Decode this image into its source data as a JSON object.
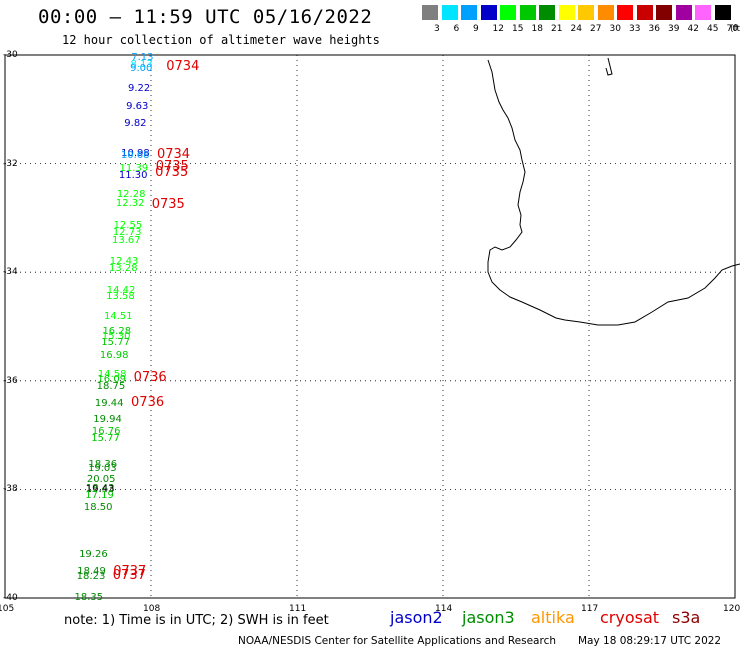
{
  "header": {
    "title": "00:00 – 11:59 UTC 05/16/2022",
    "subtitle": "12 hour collection of altimeter wave heights"
  },
  "legend": {
    "unit": "(ft)",
    "items": [
      {
        "label": "3",
        "color": "#7f7f7f"
      },
      {
        "label": "6",
        "color": "#00e5ff"
      },
      {
        "label": "9",
        "color": "#00a0ff"
      },
      {
        "label": "12",
        "color": "#0000c8"
      },
      {
        "label": "15",
        "color": "#00ff00"
      },
      {
        "label": "18",
        "color": "#00c800"
      },
      {
        "label": "21",
        "color": "#008c00"
      },
      {
        "label": "24",
        "color": "#ffff00"
      },
      {
        "label": "27",
        "color": "#ffc800"
      },
      {
        "label": "30",
        "color": "#ff8c00"
      },
      {
        "label": "33",
        "color": "#ff0000"
      },
      {
        "label": "36",
        "color": "#c80000"
      },
      {
        "label": "39",
        "color": "#820000"
      },
      {
        "label": "42",
        "color": "#a000a0"
      },
      {
        "label": "45",
        "color": "#ff64ff"
      },
      {
        "label": "70",
        "color": "#000000"
      }
    ]
  },
  "map": {
    "lat_labels": [
      "-30",
      "-32",
      "-34",
      "-36",
      "-38",
      "-40"
    ],
    "lon_labels": [
      "105",
      "108",
      "111",
      "114",
      "117",
      "120"
    ],
    "heights": [
      {
        "v": "7.13",
        "c": "#00a0ff",
        "lat": -30.05
      },
      {
        "v": "8.13",
        "c": "#00e5ff",
        "lat": -30.18
      },
      {
        "v": "9.00",
        "c": "#00a0ff",
        "lat": -30.25
      },
      {
        "v": "9.22",
        "c": "#0000c8",
        "lat": -30.62
      },
      {
        "v": "9.63",
        "c": "#0000c8",
        "lat": -30.95
      },
      {
        "v": "9.82",
        "c": "#0000c8",
        "lat": -31.27
      },
      {
        "v": "10.98",
        "c": "#0000c8",
        "lat": -31.82
      },
      {
        "v": "10.68",
        "c": "#00a0ff",
        "lat": -31.86
      },
      {
        "v": "11.39",
        "c": "#00ff00",
        "lat": -32.1
      },
      {
        "v": "11.30",
        "c": "#0000c8",
        "lat": -32.22
      },
      {
        "v": "12.28",
        "c": "#00ff00",
        "lat": -32.58
      },
      {
        "v": "12.32",
        "c": "#00ff00",
        "lat": -32.75
      },
      {
        "v": "12.55",
        "c": "#00ff00",
        "lat": -33.15
      },
      {
        "v": "12.73",
        "c": "#00ff00",
        "lat": -33.28
      },
      {
        "v": "13.67",
        "c": "#00ff00",
        "lat": -33.42
      },
      {
        "v": "12.43",
        "c": "#00ff00",
        "lat": -33.82
      },
      {
        "v": "13.28",
        "c": "#00ff00",
        "lat": -33.95
      },
      {
        "v": "14.42",
        "c": "#00ff00",
        "lat": -34.35
      },
      {
        "v": "13.58",
        "c": "#00ff00",
        "lat": -34.45
      },
      {
        "v": "14.51",
        "c": "#00ff00",
        "lat": -34.82
      },
      {
        "v": "16.28",
        "c": "#00c800",
        "lat": -35.1
      },
      {
        "v": "15.30",
        "c": "#00ff00",
        "lat": -35.2
      },
      {
        "v": "15.77",
        "c": "#00c800",
        "lat": -35.3
      },
      {
        "v": "16.98",
        "c": "#00c800",
        "lat": -35.55
      },
      {
        "v": "14.58",
        "c": "#00ff00",
        "lat": -35.9
      },
      {
        "v": "16.09",
        "c": "#00c800",
        "lat": -35.98
      },
      {
        "v": "18.75",
        "c": "#008c00",
        "lat": -36.12
      },
      {
        "v": "19.44",
        "c": "#008c00",
        "lat": -36.42
      },
      {
        "v": "19.94",
        "c": "#008c00",
        "lat": -36.72
      },
      {
        "v": "16.76",
        "c": "#00c800",
        "lat": -36.95
      },
      {
        "v": "15.77",
        "c": "#00c800",
        "lat": -37.07
      },
      {
        "v": "18.36",
        "c": "#008c00",
        "lat": -37.55
      },
      {
        "v": "19.03",
        "c": "#008c00",
        "lat": -37.63
      },
      {
        "v": "20.05",
        "c": "#008c00",
        "lat": -37.83
      },
      {
        "v": "18.43",
        "c": "#008c00",
        "lat": -38.0
      },
      {
        "v": "19.43",
        "c": "#000000",
        "lat": -38.02
      },
      {
        "v": "17.19",
        "c": "#00c800",
        "lat": -38.12
      },
      {
        "v": "18.50",
        "c": "#008c00",
        "lat": -38.35
      },
      {
        "v": "19.26",
        "c": "#008c00",
        "lat": -39.2
      },
      {
        "v": "18.49",
        "c": "#008c00",
        "lat": -39.52
      },
      {
        "v": "18.23",
        "c": "#008c00",
        "lat": -39.62
      },
      {
        "v": "18.35",
        "c": "#008c00",
        "lat": -40.0
      }
    ],
    "times": [
      {
        "v": "0734",
        "lat": -30.22
      },
      {
        "v": "0734",
        "lat": -31.85
      },
      {
        "v": "0735",
        "lat": -32.07
      },
      {
        "v": "0735",
        "lat": -32.17
      },
      {
        "v": "0735",
        "lat": -32.77
      },
      {
        "v": "0736",
        "lat": -35.95
      },
      {
        "v": "0736",
        "lat": -36.4
      },
      {
        "v": "0737",
        "lat": -39.52
      },
      {
        "v": "0737",
        "lat": -39.6
      }
    ]
  },
  "footer": {
    "note": "note: 1) Time is in UTC; 2) SWH is in feet",
    "satellites": [
      {
        "name": "jason2",
        "color": "#0000c8"
      },
      {
        "name": "jason3",
        "color": "#008c00"
      },
      {
        "name": "altika",
        "color": "#ff9600"
      },
      {
        "name": "cryosat",
        "color": "#e00000"
      },
      {
        "name": "s3a",
        "color": "#8c0000"
      }
    ],
    "credit": "NOAA/NESDIS Center for Satellite Applications and Research",
    "timestamp": "May 18 08:29:17 UTC 2022"
  }
}
